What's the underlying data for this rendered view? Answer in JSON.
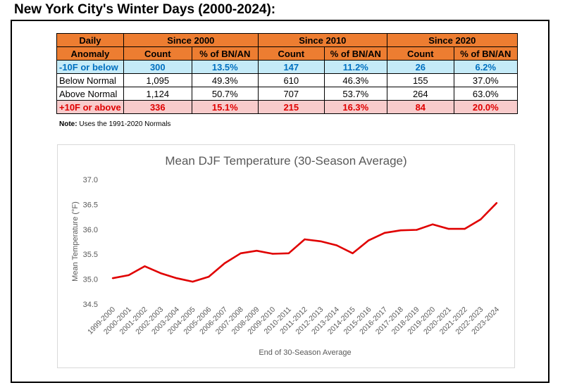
{
  "page_title": "New York City's Winter Days (2000-2024):",
  "table": {
    "header_top": [
      "Daily",
      "Since 2000",
      "Since 2010",
      "Since 2020"
    ],
    "header_bottom": [
      "Anomaly",
      "Count",
      "% of BN/AN",
      "Count",
      "% of BN/AN",
      "Count",
      "% of BN/AN"
    ],
    "rows": [
      {
        "label": "-10F or below",
        "cells": [
          "300",
          "13.5%",
          "147",
          "11.2%",
          "26",
          "6.2%"
        ]
      },
      {
        "label": "Below Normal",
        "cells": [
          "1,095",
          "49.3%",
          "610",
          "46.3%",
          "155",
          "37.0%"
        ]
      },
      {
        "label": "Above Normal",
        "cells": [
          "1,124",
          "50.7%",
          "707",
          "53.7%",
          "264",
          "63.0%"
        ]
      },
      {
        "label": "+10F or above",
        "cells": [
          "336",
          "15.1%",
          "215",
          "16.3%",
          "84",
          "20.0%"
        ]
      }
    ]
  },
  "note": {
    "prefix": "Note:",
    "text": " Uses the 1991-2020 Normals"
  },
  "colors": {
    "header_bg": "#ed7d31",
    "cold_bg": "#c5ebf8",
    "cold_text": "#0070c0",
    "hot_bg": "#f8cbcb",
    "hot_text": "#e00000",
    "line": "#e00000"
  },
  "chart_data": {
    "type": "line",
    "title": "Mean DJF Temperature (30-Season Average)",
    "xlabel": "End of 30-Season Average",
    "ylabel": "Mean Temperature (°F)",
    "ylim": [
      34.5,
      37.0
    ],
    "yticks": [
      "37.0",
      "36.5",
      "36.0",
      "35.5",
      "35.0",
      "34.5"
    ],
    "grid": false,
    "categories": [
      "1999-2000",
      "2000-2001",
      "2001-2002",
      "2002-2003",
      "2003-2004",
      "2004-2005",
      "2005-2006",
      "2006-2007",
      "2007-2008",
      "2008-2009",
      "2009-2010",
      "2010-2011",
      "2011-2012",
      "2012-2013",
      "2013-2014",
      "2014-2015",
      "2015-2016",
      "2016-2017",
      "2017-2018",
      "2018-2019",
      "2019-2020",
      "2020-2021",
      "2021-2022",
      "2022-2023",
      "2023-2024"
    ],
    "series": [
      {
        "values": [
          35.02,
          35.08,
          35.26,
          35.12,
          35.02,
          34.95,
          35.05,
          35.32,
          35.52,
          35.57,
          35.51,
          35.52,
          35.8,
          35.76,
          35.68,
          35.52,
          35.78,
          35.93,
          35.98,
          35.99,
          36.1,
          36.01,
          36.01,
          36.2,
          36.53
        ]
      }
    ]
  }
}
